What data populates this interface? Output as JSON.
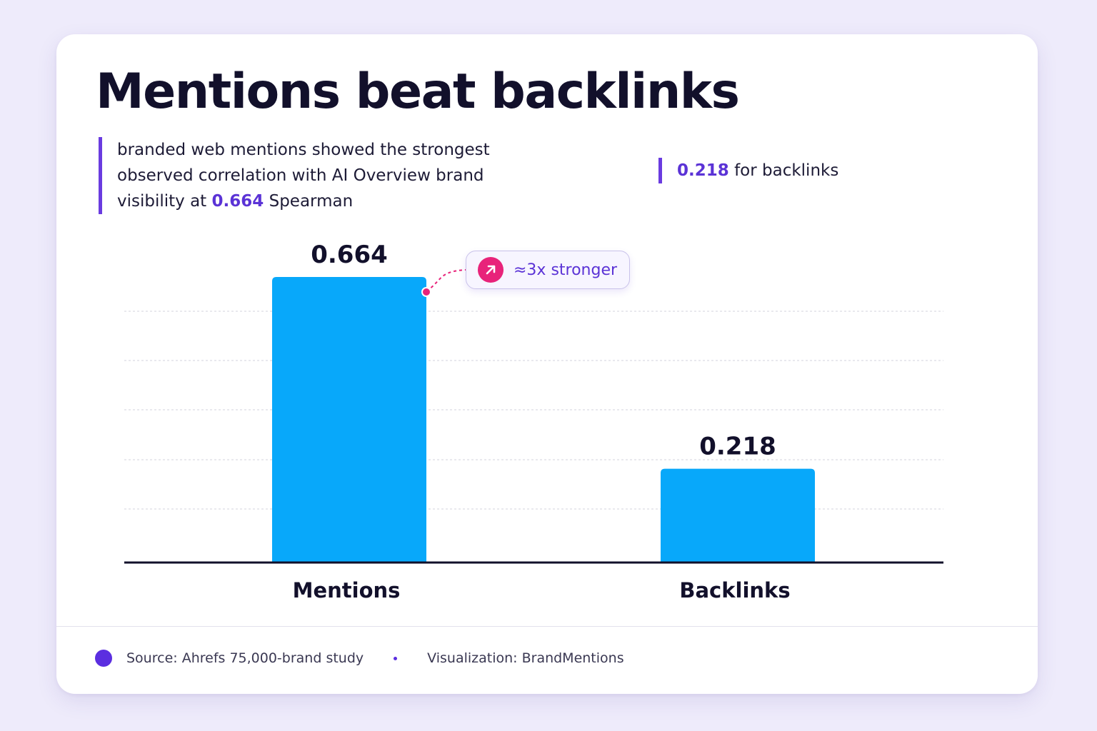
{
  "title": "Mentions beat backlinks",
  "note_left": {
    "text_before": "branded web mentions showed the strongest observed correlation with AI Overview brand visibility at ",
    "highlight": "0.664",
    "text_after": " Spearman"
  },
  "note_right": {
    "highlight": "0.218",
    "text_after": " for backlinks"
  },
  "badge": {
    "label": "≈3x stronger",
    "icon": "arrow-up-right-icon"
  },
  "footer": {
    "source": "Source: Ahrefs 75,000-brand study",
    "visualization": "Visualization: BrandMentions"
  },
  "colors": {
    "bar": "#08a8fa",
    "accent": "#5b33d6",
    "badge_icon": "#e8237a",
    "axis": "#12102b",
    "grid": "#dcdce4"
  },
  "chart_data": {
    "type": "bar",
    "categories": [
      "Mentions",
      "Backlinks"
    ],
    "values": [
      0.664,
      0.218
    ],
    "data_labels": [
      "0.664",
      "0.218"
    ],
    "title": "",
    "xlabel": "",
    "ylabel": "",
    "ylim": [
      0,
      0.664
    ],
    "grid": true,
    "legend": "none"
  }
}
